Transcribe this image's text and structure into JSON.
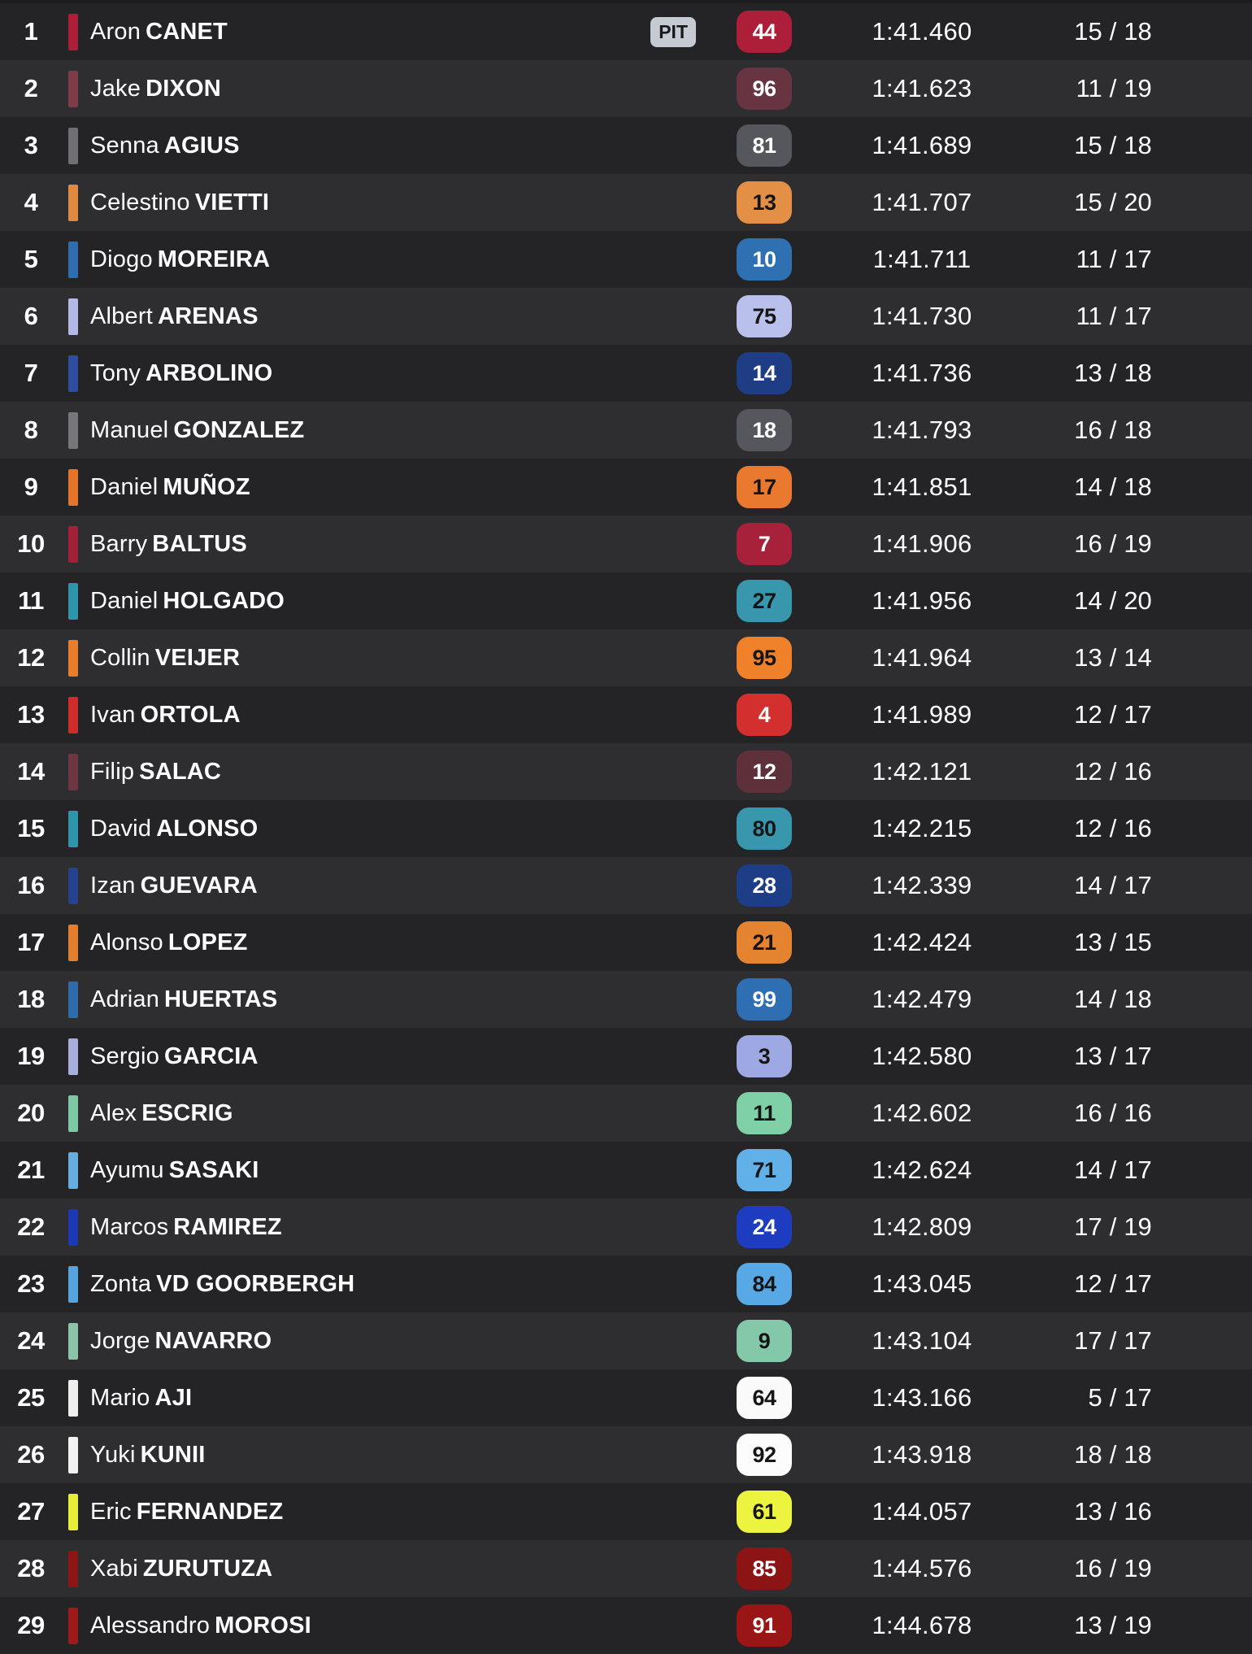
{
  "table": {
    "pit_label": "PIT",
    "laps_separator": "/",
    "colors": {
      "row_dark": "#242427",
      "row_light": "#2e2e31",
      "top_strip": "#1d1d20",
      "text": "#ffffff",
      "pit_bg": "#c5cad3",
      "pit_text": "#17191d"
    },
    "rows": [
      {
        "position": "1",
        "first_name": "Aron",
        "last_name": "CANET",
        "number": "44",
        "time": "1:41.460",
        "laps_done": "15",
        "laps_total": "18",
        "pit": true,
        "bar_color": "#ab2038",
        "badge_bg": "#ad1f39",
        "badge_text_color": "#ffffff"
      },
      {
        "position": "2",
        "first_name": "Jake",
        "last_name": "DIXON",
        "number": "96",
        "time": "1:41.623",
        "laps_done": "11",
        "laps_total": "19",
        "pit": false,
        "bar_color": "#7d3c48",
        "badge_bg": "#693442",
        "badge_text_color": "#ffffff"
      },
      {
        "position": "3",
        "first_name": "Senna",
        "last_name": "AGIUS",
        "number": "81",
        "time": "1:41.689",
        "laps_done": "15",
        "laps_total": "18",
        "pit": false,
        "bar_color": "#707074",
        "badge_bg": "#56565d",
        "badge_text_color": "#ffffff"
      },
      {
        "position": "4",
        "first_name": "Celestino",
        "last_name": "VIETTI",
        "number": "13",
        "time": "1:41.707",
        "laps_done": "15",
        "laps_total": "20",
        "pit": false,
        "bar_color": "#e08a41",
        "badge_bg": "#e39046",
        "badge_text_color": "#151515"
      },
      {
        "position": "5",
        "first_name": "Diogo",
        "last_name": "MOREIRA",
        "number": "10",
        "time": "1:41.711",
        "laps_done": "11",
        "laps_total": "17",
        "pit": false,
        "bar_color": "#2e6eae",
        "badge_bg": "#2f70b2",
        "badge_text_color": "#ffffff"
      },
      {
        "position": "6",
        "first_name": "Albert",
        "last_name": "ARENAS",
        "number": "75",
        "time": "1:41.730",
        "laps_done": "11",
        "laps_total": "17",
        "pit": false,
        "bar_color": "#b3b8e6",
        "badge_bg": "#b9c0ec",
        "badge_text_color": "#151515"
      },
      {
        "position": "7",
        "first_name": "Tony",
        "last_name": "ARBOLINO",
        "number": "14",
        "time": "1:41.736",
        "laps_done": "13",
        "laps_total": "18",
        "pit": false,
        "bar_color": "#2f4d9e",
        "badge_bg": "#1f3d85",
        "badge_text_color": "#ffffff"
      },
      {
        "position": "8",
        "first_name": "Manuel",
        "last_name": "GONZALEZ",
        "number": "18",
        "time": "1:41.793",
        "laps_done": "16",
        "laps_total": "18",
        "pit": false,
        "bar_color": "#77777b",
        "badge_bg": "#56565d",
        "badge_text_color": "#ffffff"
      },
      {
        "position": "9",
        "first_name": "Daniel",
        "last_name": "MUÑOZ",
        "number": "17",
        "time": "1:41.851",
        "laps_done": "14",
        "laps_total": "18",
        "pit": false,
        "bar_color": "#e4742a",
        "badge_bg": "#e8792e",
        "badge_text_color": "#151515"
      },
      {
        "position": "10",
        "first_name": "Barry",
        "last_name": "BALTUS",
        "number": "7",
        "time": "1:41.906",
        "laps_done": "16",
        "laps_total": "19",
        "pit": false,
        "bar_color": "#a32138",
        "badge_bg": "#a8213a",
        "badge_text_color": "#ffffff"
      },
      {
        "position": "11",
        "first_name": "Daniel",
        "last_name": "HOLGADO",
        "number": "27",
        "time": "1:41.956",
        "laps_done": "14",
        "laps_total": "20",
        "pit": false,
        "bar_color": "#2e95aa",
        "badge_bg": "#3897ac",
        "badge_text_color": "#151515"
      },
      {
        "position": "12",
        "first_name": "Collin",
        "last_name": "VEIJER",
        "number": "95",
        "time": "1:41.964",
        "laps_done": "13",
        "laps_total": "14",
        "pit": false,
        "bar_color": "#e87e2b",
        "badge_bg": "#ef812b",
        "badge_text_color": "#151515"
      },
      {
        "position": "13",
        "first_name": "Ivan",
        "last_name": "ORTOLA",
        "number": "4",
        "time": "1:41.989",
        "laps_done": "12",
        "laps_total": "17",
        "pit": false,
        "bar_color": "#cf2c2c",
        "badge_bg": "#d32f2e",
        "badge_text_color": "#ffffff"
      },
      {
        "position": "14",
        "first_name": "Filip",
        "last_name": "SALAC",
        "number": "12",
        "time": "1:42.121",
        "laps_done": "12",
        "laps_total": "16",
        "pit": false,
        "bar_color": "#6d3642",
        "badge_bg": "#5e3039",
        "badge_text_color": "#ffffff"
      },
      {
        "position": "15",
        "first_name": "David",
        "last_name": "ALONSO",
        "number": "80",
        "time": "1:42.215",
        "laps_done": "12",
        "laps_total": "16",
        "pit": false,
        "bar_color": "#2e95aa",
        "badge_bg": "#3897ac",
        "badge_text_color": "#151515"
      },
      {
        "position": "16",
        "first_name": "Izan",
        "last_name": "GUEVARA",
        "number": "28",
        "time": "1:42.339",
        "laps_done": "14",
        "laps_total": "17",
        "pit": false,
        "bar_color": "#26418f",
        "badge_bg": "#1e3d87",
        "badge_text_color": "#ffffff"
      },
      {
        "position": "17",
        "first_name": "Alonso",
        "last_name": "LOPEZ",
        "number": "21",
        "time": "1:42.424",
        "laps_done": "13",
        "laps_total": "15",
        "pit": false,
        "bar_color": "#e27f2e",
        "badge_bg": "#e58430",
        "badge_text_color": "#151515"
      },
      {
        "position": "18",
        "first_name": "Adrian",
        "last_name": "HUERTAS",
        "number": "99",
        "time": "1:42.479",
        "laps_done": "14",
        "laps_total": "18",
        "pit": false,
        "bar_color": "#2d6bab",
        "badge_bg": "#2e6fb4",
        "badge_text_color": "#ffffff"
      },
      {
        "position": "19",
        "first_name": "Sergio",
        "last_name": "GARCIA",
        "number": "3",
        "time": "1:42.580",
        "laps_done": "13",
        "laps_total": "17",
        "pit": false,
        "bar_color": "#a9afdd",
        "badge_bg": "#9ea8e2",
        "badge_text_color": "#151515"
      },
      {
        "position": "20",
        "first_name": "Alex",
        "last_name": "ESCRIG",
        "number": "11",
        "time": "1:42.602",
        "laps_done": "16",
        "laps_total": "16",
        "pit": false,
        "bar_color": "#7ec9a5",
        "badge_bg": "#7fd0a6",
        "badge_text_color": "#151515"
      },
      {
        "position": "21",
        "first_name": "Ayumu",
        "last_name": "SASAKI",
        "number": "71",
        "time": "1:42.624",
        "laps_done": "14",
        "laps_total": "17",
        "pit": false,
        "bar_color": "#66aede",
        "badge_bg": "#62b0e8",
        "badge_text_color": "#151515"
      },
      {
        "position": "22",
        "first_name": "Marcos",
        "last_name": "RAMIREZ",
        "number": "24",
        "time": "1:42.809",
        "laps_done": "17",
        "laps_total": "19",
        "pit": false,
        "bar_color": "#1c38b4",
        "badge_bg": "#1e3cc0",
        "badge_text_color": "#ffffff"
      },
      {
        "position": "23",
        "first_name": "Zonta",
        "last_name": "VD GOORBERGH",
        "number": "84",
        "time": "1:43.045",
        "laps_done": "12",
        "laps_total": "17",
        "pit": false,
        "bar_color": "#57a3dd",
        "badge_bg": "#57a8e4",
        "badge_text_color": "#151515"
      },
      {
        "position": "24",
        "first_name": "Jorge",
        "last_name": "NAVARRO",
        "number": "9",
        "time": "1:43.104",
        "laps_done": "17",
        "laps_total": "17",
        "pit": false,
        "bar_color": "#8cc4a9",
        "badge_bg": "#83c9a9",
        "badge_text_color": "#151515"
      },
      {
        "position": "25",
        "first_name": "Mario",
        "last_name": "AJI",
        "number": "64",
        "time": "1:43.166",
        "laps_done": "5",
        "laps_total": "17",
        "pit": false,
        "bar_color": "#eeeeee",
        "badge_bg": "#fafafa",
        "badge_text_color": "#151515"
      },
      {
        "position": "26",
        "first_name": "Yuki",
        "last_name": "KUNII",
        "number": "92",
        "time": "1:43.918",
        "laps_done": "18",
        "laps_total": "18",
        "pit": false,
        "bar_color": "#f2f2f2",
        "badge_bg": "#fcfcfc",
        "badge_text_color": "#151515"
      },
      {
        "position": "27",
        "first_name": "Eric",
        "last_name": "FERNANDEZ",
        "number": "61",
        "time": "1:44.057",
        "laps_done": "13",
        "laps_total": "16",
        "pit": false,
        "bar_color": "#e6ee3a",
        "badge_bg": "#ecf440",
        "badge_text_color": "#151515"
      },
      {
        "position": "28",
        "first_name": "Xabi",
        "last_name": "ZURUTUZA",
        "number": "85",
        "time": "1:44.576",
        "laps_done": "16",
        "laps_total": "19",
        "pit": false,
        "bar_color": "#8c1616",
        "badge_bg": "#8d1414",
        "badge_text_color": "#ffffff"
      },
      {
        "position": "29",
        "first_name": "Alessandro",
        "last_name": "MOROSI",
        "number": "91",
        "time": "1:44.678",
        "laps_done": "13",
        "laps_total": "19",
        "pit": false,
        "bar_color": "#9c1a1a",
        "badge_bg": "#9a1616",
        "badge_text_color": "#ffffff"
      }
    ]
  }
}
